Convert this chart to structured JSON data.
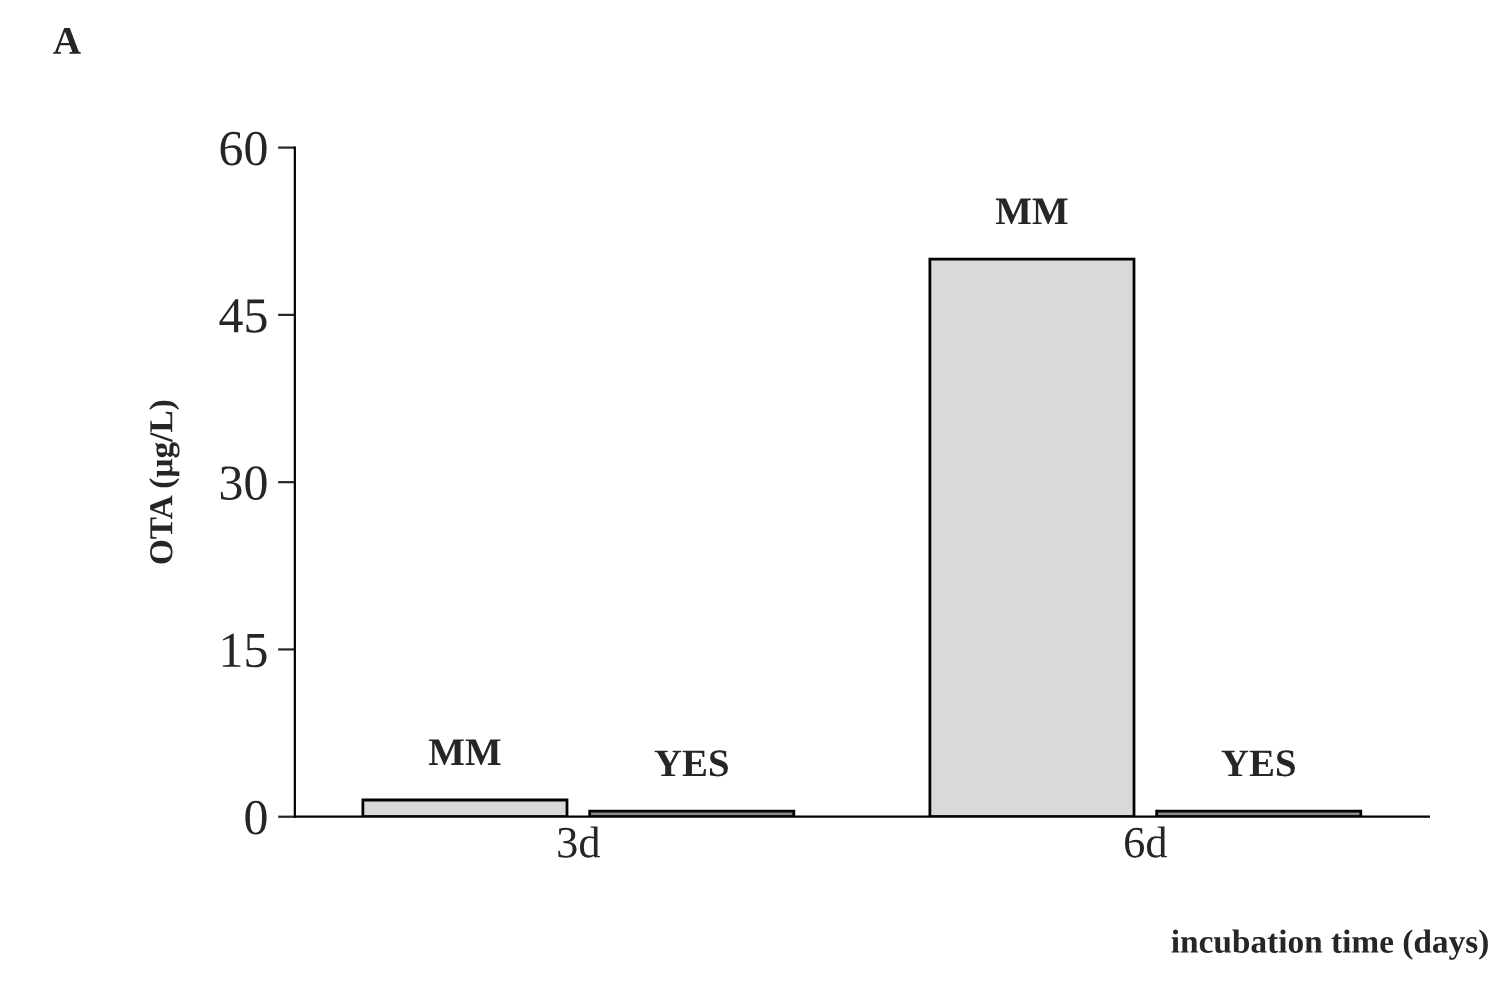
{
  "chart_data": {
    "type": "bar",
    "title": "A",
    "xlabel": "incubation time (days)",
    "ylabel": "OTA (µg/L)",
    "categories": [
      "3d",
      "6d"
    ],
    "series": [
      {
        "name": "MM",
        "color": "#d9d9d9",
        "values": [
          1.5,
          50
        ]
      },
      {
        "name": "YES",
        "color": "#8c8c8c",
        "values": [
          0.5,
          0.5
        ]
      }
    ],
    "ylim": [
      0,
      60
    ],
    "yticks": [
      0,
      15,
      30,
      45,
      60
    ],
    "grid": false,
    "legend": false
  }
}
